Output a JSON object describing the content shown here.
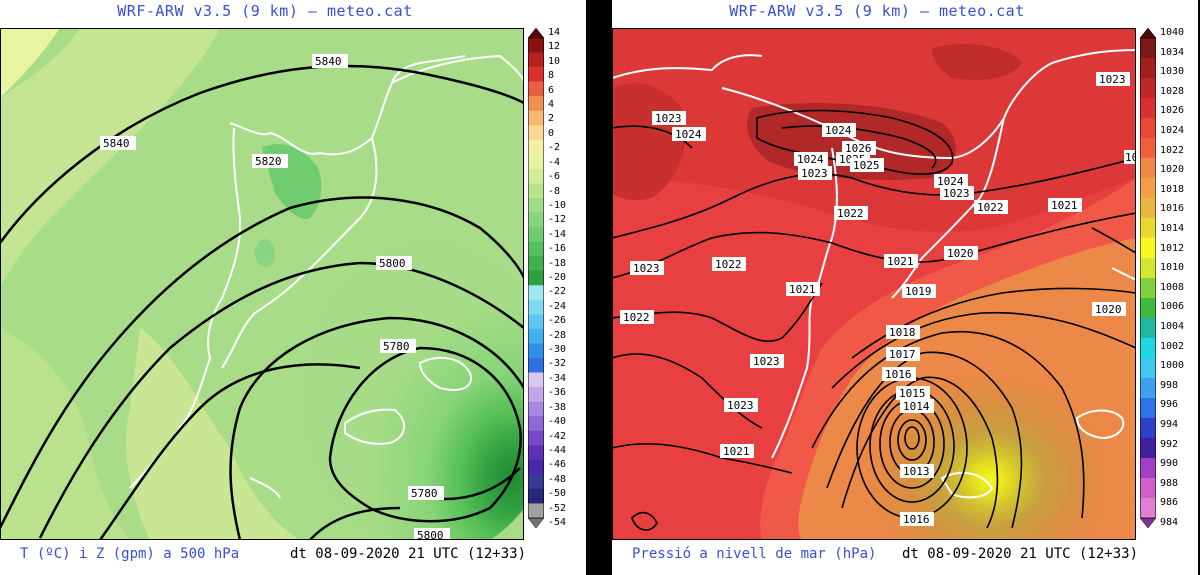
{
  "left_panel": {
    "title": "WRF-ARW v3.5 (9 km) – meteo.cat",
    "variable": "T (ºC) i Z (gpm) a 500 hPa",
    "datetime": "dt 08-09-2020 21 UTC (12+33)",
    "contour_labels": [
      "5840",
      "5840",
      "5820",
      "5800",
      "5780",
      "5780",
      "5800"
    ],
    "colorbar": {
      "labels": [
        "14",
        "12",
        "10",
        "8",
        "6",
        "4",
        "2",
        "0",
        "-2",
        "-4",
        "-6",
        "-8",
        "-10",
        "-12",
        "-14",
        "-16",
        "-18",
        "-20",
        "-22",
        "-24",
        "-26",
        "-28",
        "-30",
        "-32",
        "-34",
        "-36",
        "-38",
        "-40",
        "-42",
        "-44",
        "-46",
        "-48",
        "-50",
        "-52",
        "-54"
      ],
      "colors": [
        "#5a0a0a",
        "#8b1010",
        "#b52020",
        "#d83030",
        "#e86040",
        "#f09050",
        "#f4b870",
        "#f8d890",
        "#f4f0a8",
        "#e8f4a0",
        "#d0ec98",
        "#b8e490",
        "#a0dc88",
        "#88d480",
        "#70cc70",
        "#58c060",
        "#40b050",
        "#30a040",
        "#a0e8f0",
        "#80d8f0",
        "#60c8f0",
        "#40b0ee",
        "#3090e8",
        "#3070e0",
        "#d8c8f0",
        "#c0a8e8",
        "#a888e0",
        "#9068d8",
        "#7848c8",
        "#6030b8",
        "#4828a8",
        "#383898",
        "#282878",
        "#a0a0a0",
        "#707070"
      ]
    }
  },
  "right_panel": {
    "title": "WRF-ARW v3.5 (9 km) – meteo.cat",
    "variable": "Pressió a nivell de mar (hPa)",
    "datetime": "dt 08-09-2020 21 UTC (12+33)",
    "contour_labels": [
      "1024",
      "1023",
      "1024",
      "1025",
      "1026",
      "1024",
      "1023",
      "1025",
      "1024",
      "1023",
      "1023",
      "1022",
      "1022",
      "1021",
      "1023",
      "1022",
      "1021",
      "1020",
      "1019",
      "1022",
      "1023",
      "1021",
      "1018",
      "1017",
      "1016",
      "1015",
      "1014",
      "1013",
      "1016",
      "1020",
      "1021",
      "1023",
      "10"
    ],
    "colorbar": {
      "labels": [
        "1040",
        "1034",
        "1030",
        "1028",
        "1026",
        "1024",
        "1022",
        "1020",
        "1018",
        "1016",
        "1014",
        "1012",
        "1010",
        "1008",
        "1006",
        "1004",
        "1002",
        "1000",
        "998",
        "996",
        "994",
        "992",
        "990",
        "988",
        "986",
        "984"
      ],
      "colors": [
        "#4a0a10",
        "#7a1818",
        "#a02020",
        "#c02828",
        "#d83030",
        "#e84838",
        "#f06040",
        "#f08848",
        "#f0a048",
        "#e8b840",
        "#e8d830",
        "#f8f820",
        "#d0e830",
        "#80d040",
        "#40b840",
        "#20b8a0",
        "#20d8e0",
        "#40c8f0",
        "#40a0f0",
        "#3070e8",
        "#3040c8",
        "#4020a0",
        "#a040c0",
        "#d060c8",
        "#e080d0",
        "#803090"
      ]
    }
  }
}
